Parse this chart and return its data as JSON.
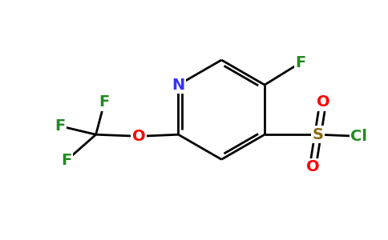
{
  "bg_color": "#ffffff",
  "atom_colors": {
    "C": "#000000",
    "N": "#3333ff",
    "O": "#ff0000",
    "F": "#228b22",
    "S": "#8b6914",
    "Cl": "#228b22"
  },
  "bond_color": "#000000",
  "figsize": [
    4.84,
    3.0
  ],
  "dpi": 100,
  "bond_lw": 2.0,
  "font_size_atom": 14,
  "xlim": [
    0,
    10
  ],
  "ylim": [
    0,
    7
  ]
}
